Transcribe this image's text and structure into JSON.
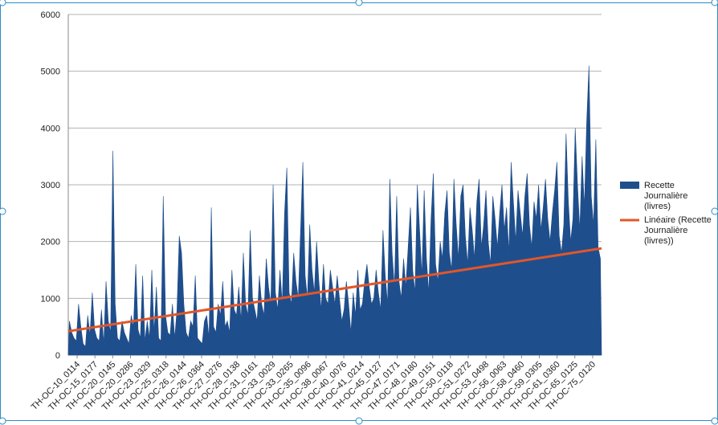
{
  "colors": {
    "area": "#1F4E8C",
    "trend": "#E0572A",
    "grid": "#B3B3B3",
    "axis": "#888888",
    "selection": "#2D8CC4"
  },
  "chart_data": {
    "type": "area",
    "title": "",
    "xlabel": "",
    "ylabel": "",
    "ylim": [
      0,
      6000
    ],
    "yticks": [
      0,
      1000,
      2000,
      3000,
      4000,
      5000,
      6000
    ],
    "grid": true,
    "legend_position": "right",
    "x_tick_labels": [
      "TH-OC-10_0114",
      "TH-OC-15_0177",
      "TH-OC-20_0145",
      "TH-OC-20_0286",
      "TH-OC-23_0329",
      "TH-OC-25_0318",
      "TH-OC-26_0144",
      "TH-OC-26_0364",
      "TH-OC-27_0276",
      "TH-OC-28_0138",
      "TH-OC-31_0161",
      "TH-OC-33_0029",
      "TH-OC-33_0265",
      "TH-OC-35_0096",
      "TH-OC-38_0067",
      "TH-OC-40_0076",
      "TH-OC-41_0214",
      "TH-OC-45_0127",
      "TH-OC-47_0171",
      "TH-OC-48_0180",
      "TH-OC-49_0151",
      "TH-OC-50_0118",
      "TH-OC-51_0272",
      "TH-OC-53_0498",
      "TH-OC-56_0063",
      "TH-OC-58_0460",
      "TH-OC-59_0305",
      "TH-OC-61_0360",
      "TH-OC-65_0125",
      "TH-OC-75_0120"
    ],
    "series": [
      {
        "name": "Recette Journalière (livres)",
        "kind": "area",
        "values": [
          600,
          400,
          300,
          250,
          900,
          500,
          200,
          150,
          700,
          350,
          1100,
          450,
          300,
          250,
          800,
          200,
          1300,
          600,
          400,
          3600,
          900,
          300,
          250,
          600,
          400,
          300,
          200,
          700,
          500,
          1600,
          450,
          300,
          1400,
          250,
          600,
          300,
          1500,
          400,
          1200,
          300,
          250,
          2800,
          700,
          400,
          350,
          900,
          300,
          800,
          2100,
          1800,
          900,
          400,
          300,
          600,
          500,
          1400,
          300,
          250,
          200,
          600,
          700,
          300,
          2600,
          500,
          400,
          900,
          700,
          1300,
          500,
          600,
          400,
          1500,
          800,
          700,
          1200,
          600,
          1800,
          900,
          700,
          2200,
          1000,
          800,
          600,
          1400,
          900,
          700,
          1700,
          1200,
          900,
          3000,
          1100,
          800,
          1500,
          900,
          2500,
          3300,
          1100,
          900,
          1800,
          1300,
          1000,
          2200,
          3400,
          1400,
          1000,
          2300,
          1500,
          1100,
          2000,
          1300,
          800,
          1600,
          1000,
          900,
          1500,
          1200,
          900,
          1400,
          1000,
          600,
          800,
          1300,
          900,
          400,
          1100,
          700,
          1500,
          800,
          900,
          1300,
          1600,
          1200,
          900,
          1000,
          1500,
          1100,
          800,
          2200,
          1400,
          900,
          3100,
          1800,
          1200,
          2800,
          1300,
          1000,
          1700,
          1200,
          1900,
          2600,
          1500,
          1100,
          3000,
          2200,
          1400,
          2900,
          1700,
          1100,
          2400,
          3200,
          1600,
          1300,
          2000,
          1700,
          2500,
          2900,
          1800,
          1500,
          3100,
          2300,
          1700,
          2800,
          3000,
          2100,
          1600,
          2600,
          2200,
          1700,
          2700,
          3100,
          1900,
          2300,
          2900,
          2000,
          1600,
          2800,
          2400,
          1900,
          2500,
          3000,
          2200,
          2600,
          1800,
          3400,
          2700,
          2000,
          2900,
          2500,
          2100,
          2800,
          3200,
          2300,
          1900,
          2700,
          2400,
          3000,
          2200,
          2600,
          3100,
          2400,
          2000,
          2500,
          2900,
          3400,
          2100,
          1800,
          2300,
          3900,
          2700,
          2000,
          2400,
          4000,
          3000,
          2200,
          3500,
          2600,
          4100,
          5100,
          2800,
          2300,
          3800,
          1900,
          1700
        ]
      },
      {
        "name": "Linéaire (Recette Journalière (livres))",
        "kind": "trendline",
        "start": 420,
        "end": 1880
      }
    ]
  }
}
